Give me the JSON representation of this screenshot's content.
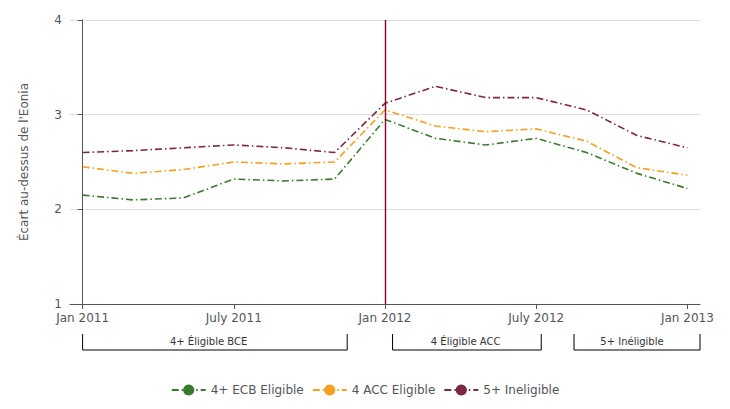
{
  "chart_data": {
    "type": "line",
    "y_label": "Écart au-dessus de l'Eonia",
    "line_style": "dash-dot",
    "xlim": [
      -0.5,
      24.5
    ],
    "xticks": [
      {
        "value": 0,
        "label": "Jan 2011"
      },
      {
        "value": 6,
        "label": "July 2011"
      },
      {
        "value": 12,
        "label": "Jan 2012"
      },
      {
        "value": 18,
        "label": "July 2012"
      },
      {
        "value": 24,
        "label": "Jan 2013"
      }
    ],
    "ylim": [
      1,
      4
    ],
    "yticks": [
      1,
      2,
      3,
      4
    ],
    "grid": true,
    "legend": "bottom",
    "x": [
      0,
      2,
      4,
      6,
      8,
      10,
      12,
      14,
      16,
      18,
      20,
      22,
      24
    ],
    "series": [
      {
        "name": "4+ ECB Eligible",
        "color": "#3a7a2f",
        "values": [
          2.15,
          2.1,
          2.12,
          2.32,
          2.3,
          2.32,
          2.95,
          2.75,
          2.68,
          2.75,
          2.6,
          2.38,
          2.22
        ]
      },
      {
        "name": "4 ACC Eligible",
        "color": "#f5a020",
        "values": [
          2.45,
          2.38,
          2.42,
          2.5,
          2.48,
          2.5,
          3.05,
          2.88,
          2.82,
          2.85,
          2.72,
          2.44,
          2.36
        ]
      },
      {
        "name": "5+ Ineligible",
        "color": "#7b2840",
        "values": [
          2.6,
          2.62,
          2.65,
          2.68,
          2.65,
          2.6,
          3.12,
          3.3,
          3.18,
          3.18,
          3.05,
          2.78,
          2.65
        ]
      }
    ],
    "vline": {
      "x": 12,
      "color": "#8b0020"
    },
    "annotations": [
      {
        "text": "4+ Éligible BCE",
        "x1": 0.0,
        "x2": 10.5,
        "x": 5.0
      },
      {
        "text": "4 Éligible ACC",
        "x1": 12.3,
        "x2": 18.2,
        "x": 15.2
      },
      {
        "text": "5+ Inéligible",
        "x1": 19.5,
        "x2": 24.5,
        "x": 21.8
      }
    ]
  }
}
